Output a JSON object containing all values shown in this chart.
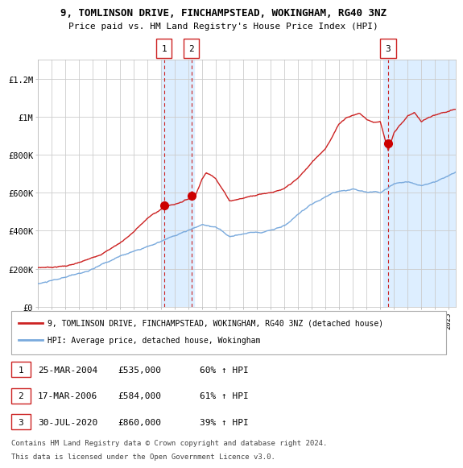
{
  "title": "9, TOMLINSON DRIVE, FINCHAMPSTEAD, WOKINGHAM, RG40 3NZ",
  "subtitle": "Price paid vs. HM Land Registry's House Price Index (HPI)",
  "legend_line1": "9, TOMLINSON DRIVE, FINCHAMPSTEAD, WOKINGHAM, RG40 3NZ (detached house)",
  "legend_line2": "HPI: Average price, detached house, Wokingham",
  "footer1": "Contains HM Land Registry data © Crown copyright and database right 2024.",
  "footer2": "This data is licensed under the Open Government Licence v3.0.",
  "transactions": [
    {
      "num": 1,
      "date": "25-MAR-2004",
      "price": "535,000",
      "pct": "60%",
      "dir": "↑",
      "year_x": 2004.23,
      "price_y": 535000
    },
    {
      "num": 2,
      "date": "17-MAR-2006",
      "price": "584,000",
      "pct": "61%",
      "dir": "↑",
      "year_x": 2006.22,
      "price_y": 584000
    },
    {
      "num": 3,
      "date": "30-JUL-2020",
      "price": "860,000",
      "pct": "39%",
      "dir": "↑",
      "year_x": 2020.58,
      "price_y": 860000
    }
  ],
  "xlim": [
    1995.0,
    2025.5
  ],
  "ylim": [
    0,
    1300000
  ],
  "yticks": [
    0,
    200000,
    400000,
    600000,
    800000,
    1000000,
    1200000
  ],
  "ytick_labels": [
    "£0",
    "£200K",
    "£400K",
    "£600K",
    "£800K",
    "£1M",
    "£1.2M"
  ],
  "hpi_color": "#7aaadd",
  "price_color": "#cc2222",
  "marker_color": "#cc0000",
  "highlight_color": "#ddeeff",
  "grid_color": "#cccccc",
  "bg_color": "#ffffff",
  "highlight_ranges": [
    [
      2004.0,
      2006.4
    ],
    [
      2020.25,
      2025.5
    ]
  ]
}
